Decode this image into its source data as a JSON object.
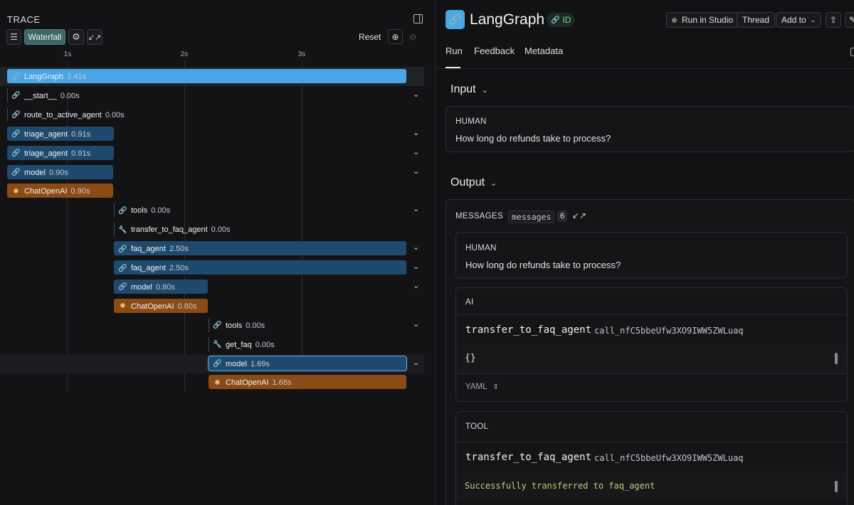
{
  "trace": {
    "title": "TRACE",
    "waterfall_label": "Waterfall",
    "reset_label": "Reset",
    "axis_ticks": [
      "1s",
      "2s",
      "3s"
    ],
    "rows": [
      {
        "name": "LangGraph",
        "duration": "3.41s",
        "icon": "link-icon",
        "bar": "bright",
        "expandable": false
      },
      {
        "name": "__start__",
        "duration": "0.00s",
        "icon": "link-icon",
        "bar": "none",
        "expandable": true
      },
      {
        "name": "route_to_active_agent",
        "duration": "0.00s",
        "icon": "link-icon",
        "bar": "none",
        "expandable": false
      },
      {
        "name": "triage_agent",
        "duration": "0.91s",
        "icon": "link-icon",
        "bar": "blue",
        "expandable": true
      },
      {
        "name": "triage_agent",
        "duration": "0.91s",
        "icon": "link-icon",
        "bar": "blue",
        "expandable": true
      },
      {
        "name": "model",
        "duration": "0.90s",
        "icon": "link-icon",
        "bar": "blue",
        "expandable": true
      },
      {
        "name": "ChatOpenAI",
        "duration": "0.90s",
        "icon": "openai-icon",
        "bar": "orange",
        "expandable": false
      },
      {
        "name": "tools",
        "duration": "0.00s",
        "icon": "link-icon",
        "bar": "none",
        "expandable": true
      },
      {
        "name": "transfer_to_faq_agent",
        "duration": "0.00s",
        "icon": "wrench-icon",
        "bar": "none",
        "expandable": false
      },
      {
        "name": "faq_agent",
        "duration": "2.50s",
        "icon": "link-icon",
        "bar": "blue",
        "expandable": true
      },
      {
        "name": "faq_agent",
        "duration": "2.50s",
        "icon": "link-icon",
        "bar": "blue",
        "expandable": true
      },
      {
        "name": "model",
        "duration": "0.80s",
        "icon": "link-icon",
        "bar": "blue",
        "expandable": true
      },
      {
        "name": "ChatOpenAI",
        "duration": "0.80s",
        "icon": "openai-icon",
        "bar": "orange",
        "expandable": false
      },
      {
        "name": "tools",
        "duration": "0.00s",
        "icon": "link-icon",
        "bar": "none",
        "expandable": true
      },
      {
        "name": "get_faq",
        "duration": "0.00s",
        "icon": "wrench-icon",
        "bar": "none",
        "expandable": false
      },
      {
        "name": "model",
        "duration": "1.69s",
        "icon": "link-icon",
        "bar": "outline",
        "expandable": true
      },
      {
        "name": "ChatOpenAI",
        "duration": "1.68s",
        "icon": "openai-icon",
        "bar": "orange",
        "expandable": false
      }
    ]
  },
  "run": {
    "title": "LangGraph",
    "id_label": "ID",
    "run_in_studio_label": "Run in Studio",
    "thread_label": "Thread",
    "add_to_label": "Add to",
    "tabs": [
      "Run",
      "Feedback",
      "Metadata"
    ],
    "input": {
      "heading": "Input",
      "role": "HUMAN",
      "text": "How long do refunds take to process?"
    },
    "output": {
      "heading": "Output",
      "messages_label": "MESSAGES",
      "messages_key": "messages",
      "messages_count": "6",
      "human": {
        "role": "HUMAN",
        "text": "How long do refunds take to process?"
      },
      "ai": {
        "role": "AI",
        "tool_name": "transfer_to_faq_agent",
        "call_id": "call_nfC5bbeUfw3XO9IWW5ZWLuaq",
        "args": "{}",
        "format": "YAML"
      },
      "tool": {
        "role": "TOOL",
        "tool_name": "transfer_to_faq_agent",
        "call_id": "call_nfC5bbeUfw3XO9IWW5ZWLuaq",
        "content": "Successfully transferred to faq_agent"
      }
    }
  },
  "colors": {
    "accent_blue": "#4aa6e6",
    "bar_blue": "#1e4a6e",
    "bar_orange": "#8a4b14",
    "success_text": "#c8c87a"
  }
}
